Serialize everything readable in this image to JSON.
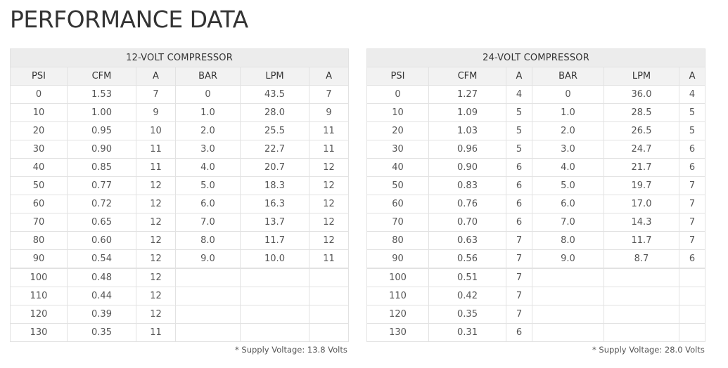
{
  "page": {
    "title": "PERFORMANCE DATA"
  },
  "tables": [
    {
      "title": "12-VOLT COMPRESSOR",
      "columns": [
        "PSI",
        "CFM",
        "A",
        "BAR",
        "LPM",
        "A"
      ],
      "rows": [
        [
          "0",
          "1.53",
          "7",
          "0",
          "43.5",
          "7"
        ],
        [
          "10",
          "1.00",
          "9",
          "1.0",
          "28.0",
          "9"
        ],
        [
          "20",
          "0.95",
          "10",
          "2.0",
          "25.5",
          "11"
        ],
        [
          "30",
          "0.90",
          "11",
          "3.0",
          "22.7",
          "11"
        ],
        [
          "40",
          "0.85",
          "11",
          "4.0",
          "20.7",
          "12"
        ],
        [
          "50",
          "0.77",
          "12",
          "5.0",
          "18.3",
          "12"
        ],
        [
          "60",
          "0.72",
          "12",
          "6.0",
          "16.3",
          "12"
        ],
        [
          "70",
          "0.65",
          "12",
          "7.0",
          "13.7",
          "12"
        ],
        [
          "80",
          "0.60",
          "12",
          "8.0",
          "11.7",
          "12"
        ],
        [
          "90",
          "0.54",
          "12",
          "9.0",
          "10.0",
          "11"
        ],
        [
          "100",
          "0.48",
          "12",
          "",
          "",
          ""
        ],
        [
          "110",
          "0.44",
          "12",
          "",
          "",
          ""
        ],
        [
          "120",
          "0.39",
          "12",
          "",
          "",
          ""
        ],
        [
          "130",
          "0.35",
          "11",
          "",
          "",
          ""
        ]
      ],
      "footnote": "* Supply Voltage: 13.8 Volts"
    },
    {
      "title": "24-VOLT COMPRESSOR",
      "columns": [
        "PSI",
        "CFM",
        "A",
        "BAR",
        "LPM",
        "A"
      ],
      "rows": [
        [
          "0",
          "1.27",
          "4",
          "0",
          "36.0",
          "4"
        ],
        [
          "10",
          "1.09",
          "5",
          "1.0",
          "28.5",
          "5"
        ],
        [
          "20",
          "1.03",
          "5",
          "2.0",
          "26.5",
          "5"
        ],
        [
          "30",
          "0.96",
          "5",
          "3.0",
          "24.7",
          "6"
        ],
        [
          "40",
          "0.90",
          "6",
          "4.0",
          "21.7",
          "6"
        ],
        [
          "50",
          "0.83",
          "6",
          "5.0",
          "19.7",
          "7"
        ],
        [
          "60",
          "0.76",
          "6",
          "6.0",
          "17.0",
          "7"
        ],
        [
          "70",
          "0.70",
          "6",
          "7.0",
          "14.3",
          "7"
        ],
        [
          "80",
          "0.63",
          "7",
          "8.0",
          "11.7",
          "7"
        ],
        [
          "90",
          "0.56",
          "7",
          "9.0",
          "8.7",
          "6"
        ],
        [
          "100",
          "0.51",
          "7",
          "",
          "",
          ""
        ],
        [
          "110",
          "0.42",
          "7",
          "",
          "",
          ""
        ],
        [
          "120",
          "0.35",
          "7",
          "",
          "",
          ""
        ],
        [
          "130",
          "0.31",
          "6",
          "",
          "",
          ""
        ]
      ],
      "footnote": "* Supply Voltage: 28.0 Volts"
    }
  ]
}
